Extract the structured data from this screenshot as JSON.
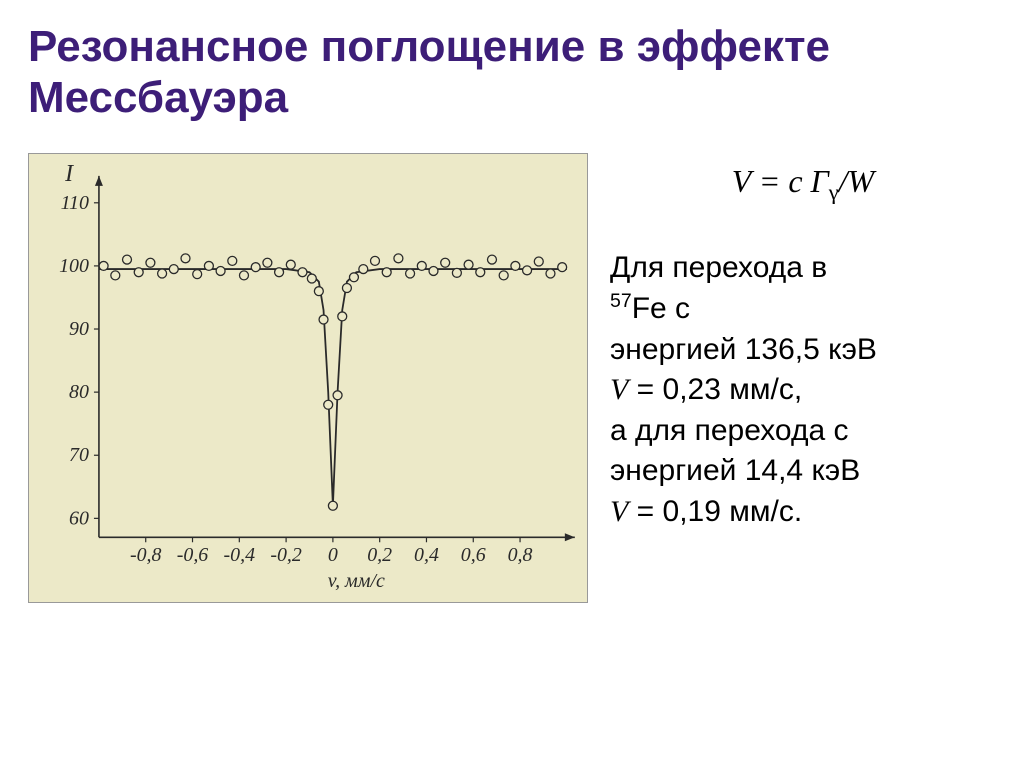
{
  "title_color": "#3d1e78",
  "title": "Резонансное поглощение в эффекте Мессбауэра",
  "formula": "V = c Γ",
  "formula_sub": "γ",
  "formula_tail": "/W",
  "desc_line1": "Для перехода в",
  "desc_line2_sup": "57",
  "desc_line2": "Fe c",
  "desc_line3": "энергией  136,5 кэВ",
  "desc_line4_v": "V",
  "desc_line4": " =  0,23 мм/с,",
  "desc_line5": "а для перехода с",
  "desc_line6": "энергией 14,4 кэВ",
  "desc_line7_v": "V",
  "desc_line7": " = 0,19 мм/с.",
  "chart": {
    "type": "scatter-line",
    "background_color": "#ece9c8",
    "axis_color": "#2a2a2a",
    "line_color": "#2a2a2a",
    "marker_stroke": "#2a2a2a",
    "marker_fill": "#ece9c8",
    "marker_radius": 4.5,
    "tick_fontsize": 20,
    "label_fontsize": 24,
    "ylabel": "I",
    "xlabel": "v, мм/с",
    "xlim": [
      -1.0,
      1.0
    ],
    "ylim": [
      57,
      113
    ],
    "xticks": [
      -0.8,
      -0.6,
      -0.4,
      -0.2,
      0,
      0.2,
      0.4,
      0.6,
      0.8
    ],
    "xtick_labels": [
      "-0,8",
      "-0,6",
      "-0,4",
      "-0,2",
      "0",
      "0,2",
      "0,4",
      "0,6",
      "0,8"
    ],
    "yticks": [
      60,
      70,
      80,
      90,
      100,
      110
    ],
    "ytick_labels": [
      "60",
      "70",
      "80",
      "90",
      "100",
      "110"
    ],
    "line_path": [
      [
        -1.0,
        99.5
      ],
      [
        -0.5,
        99.5
      ],
      [
        -0.2,
        99.5
      ],
      [
        -0.1,
        99.0
      ],
      [
        -0.06,
        97.5
      ],
      [
        -0.04,
        93.0
      ],
      [
        -0.02,
        80.0
      ],
      [
        0.0,
        62.0
      ],
      [
        0.02,
        80.0
      ],
      [
        0.04,
        93.0
      ],
      [
        0.06,
        97.5
      ],
      [
        0.1,
        99.0
      ],
      [
        0.2,
        99.5
      ],
      [
        0.5,
        99.5
      ],
      [
        1.0,
        99.5
      ]
    ],
    "points": [
      [
        -0.98,
        100.0
      ],
      [
        -0.93,
        98.5
      ],
      [
        -0.88,
        101.0
      ],
      [
        -0.83,
        99.0
      ],
      [
        -0.78,
        100.5
      ],
      [
        -0.73,
        98.8
      ],
      [
        -0.68,
        99.5
      ],
      [
        -0.63,
        101.2
      ],
      [
        -0.58,
        98.7
      ],
      [
        -0.53,
        100.0
      ],
      [
        -0.48,
        99.2
      ],
      [
        -0.43,
        100.8
      ],
      [
        -0.38,
        98.5
      ],
      [
        -0.33,
        99.8
      ],
      [
        -0.28,
        100.5
      ],
      [
        -0.23,
        99.0
      ],
      [
        -0.18,
        100.2
      ],
      [
        -0.13,
        99.0
      ],
      [
        -0.09,
        98.0
      ],
      [
        -0.06,
        96.0
      ],
      [
        -0.04,
        91.5
      ],
      [
        -0.02,
        78.0
      ],
      [
        0.0,
        62.0
      ],
      [
        0.02,
        79.5
      ],
      [
        0.04,
        92.0
      ],
      [
        0.06,
        96.5
      ],
      [
        0.09,
        98.2
      ],
      [
        0.13,
        99.5
      ],
      [
        0.18,
        100.8
      ],
      [
        0.23,
        99.0
      ],
      [
        0.28,
        101.2
      ],
      [
        0.33,
        98.8
      ],
      [
        0.38,
        100.0
      ],
      [
        0.43,
        99.2
      ],
      [
        0.48,
        100.5
      ],
      [
        0.53,
        98.9
      ],
      [
        0.58,
        100.2
      ],
      [
        0.63,
        99.0
      ],
      [
        0.68,
        101.0
      ],
      [
        0.73,
        98.5
      ],
      [
        0.78,
        100.0
      ],
      [
        0.83,
        99.3
      ],
      [
        0.88,
        100.7
      ],
      [
        0.93,
        98.8
      ],
      [
        0.98,
        99.8
      ]
    ]
  }
}
